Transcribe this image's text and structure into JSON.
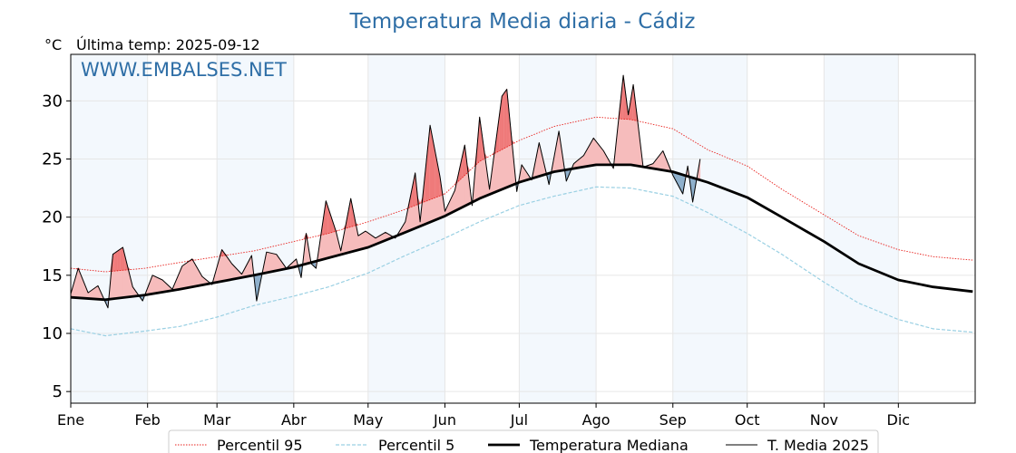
{
  "chart_data": {
    "type": "line",
    "title": "Temperatura Media diaria - Cádiz",
    "unit_label": "°C",
    "last_temp_label": "Última temp: 2025-09-12",
    "watermark": "WWW.EMBALSES.NET",
    "months": [
      "Ene",
      "Feb",
      "Mar",
      "Abr",
      "May",
      "Jun",
      "Jul",
      "Ago",
      "Sep",
      "Oct",
      "Nov",
      "Dic"
    ],
    "y_ticks": [
      5,
      10,
      15,
      20,
      25,
      30
    ],
    "ylim": [
      4,
      34
    ],
    "xlim": [
      1,
      366
    ],
    "grid": true,
    "legend_position": "bottom",
    "series": [
      {
        "name": "Percentil 95",
        "color": "#e8201c",
        "style": "dotted",
        "x": [
          1,
          15,
          31,
          45,
          60,
          75,
          91,
          105,
          121,
          135,
          152,
          166,
          182,
          196,
          213,
          227,
          244,
          258,
          274,
          288,
          305,
          319,
          335,
          349,
          365
        ],
        "values": [
          15.6,
          15.3,
          15.6,
          16.1,
          16.6,
          17.1,
          17.9,
          18.6,
          19.6,
          20.6,
          22.0,
          24.8,
          26.6,
          27.8,
          28.6,
          28.4,
          27.6,
          25.8,
          24.4,
          22.4,
          20.2,
          18.4,
          17.2,
          16.6,
          16.3
        ]
      },
      {
        "name": "Percentil 5",
        "color": "#9ad0e3",
        "style": "dashed",
        "x": [
          1,
          15,
          31,
          45,
          60,
          75,
          91,
          105,
          121,
          135,
          152,
          166,
          182,
          196,
          213,
          227,
          244,
          258,
          274,
          288,
          305,
          319,
          335,
          349,
          365
        ],
        "values": [
          10.4,
          9.8,
          10.2,
          10.6,
          11.4,
          12.4,
          13.2,
          14.0,
          15.2,
          16.6,
          18.2,
          19.6,
          21.0,
          21.8,
          22.6,
          22.5,
          21.8,
          20.4,
          18.6,
          16.8,
          14.4,
          12.6,
          11.2,
          10.4,
          10.1
        ]
      },
      {
        "name": "Temperatura Mediana",
        "color": "#000000",
        "style": "thick",
        "x": [
          1,
          15,
          31,
          45,
          60,
          75,
          91,
          105,
          121,
          135,
          152,
          166,
          182,
          196,
          213,
          227,
          244,
          258,
          274,
          288,
          305,
          319,
          335,
          349,
          365
        ],
        "values": [
          13.1,
          12.9,
          13.3,
          13.8,
          14.4,
          15.0,
          15.7,
          16.5,
          17.4,
          18.6,
          20.1,
          21.6,
          23.0,
          23.9,
          24.5,
          24.5,
          23.9,
          23.0,
          21.7,
          20.0,
          17.9,
          16.0,
          14.6,
          14.0,
          13.6
        ]
      },
      {
        "name": "T. Media 2025",
        "color": "#000000",
        "style": "thin",
        "x": [
          1,
          4,
          8,
          12,
          16,
          18,
          22,
          26,
          30,
          34,
          38,
          42,
          46,
          50,
          54,
          58,
          62,
          66,
          70,
          74,
          76,
          80,
          84,
          88,
          92,
          94,
          96,
          98,
          100,
          104,
          108,
          110,
          114,
          117,
          120,
          124,
          128,
          132,
          136,
          140,
          142,
          146,
          150,
          152,
          156,
          160,
          163,
          166,
          170,
          175,
          177,
          181,
          183,
          187,
          190,
          194,
          198,
          201,
          204,
          208,
          212,
          216,
          220,
          224,
          226,
          228,
          232,
          236,
          240,
          244,
          248,
          250,
          252,
          255
        ],
        "values": [
          13.4,
          15.6,
          13.5,
          14.1,
          12.2,
          16.8,
          17.4,
          14.0,
          12.8,
          15.0,
          14.6,
          13.8,
          15.8,
          16.4,
          14.9,
          14.2,
          17.2,
          16.0,
          15.1,
          16.7,
          12.8,
          17.0,
          16.8,
          15.6,
          16.4,
          14.8,
          18.6,
          16.0,
          15.6,
          21.4,
          18.8,
          17.1,
          21.6,
          18.4,
          18.8,
          18.2,
          18.7,
          18.2,
          19.6,
          23.8,
          19.6,
          27.9,
          23.5,
          20.5,
          22.3,
          26.2,
          21.0,
          28.6,
          22.4,
          30.4,
          31.0,
          22.2,
          24.5,
          23.2,
          26.4,
          22.8,
          27.4,
          23.1,
          24.6,
          25.3,
          26.8,
          25.7,
          24.2,
          32.2,
          28.8,
          31.4,
          24.3,
          24.6,
          25.7,
          23.6,
          22.0,
          24.4,
          21.3,
          25.0
        ]
      }
    ]
  }
}
